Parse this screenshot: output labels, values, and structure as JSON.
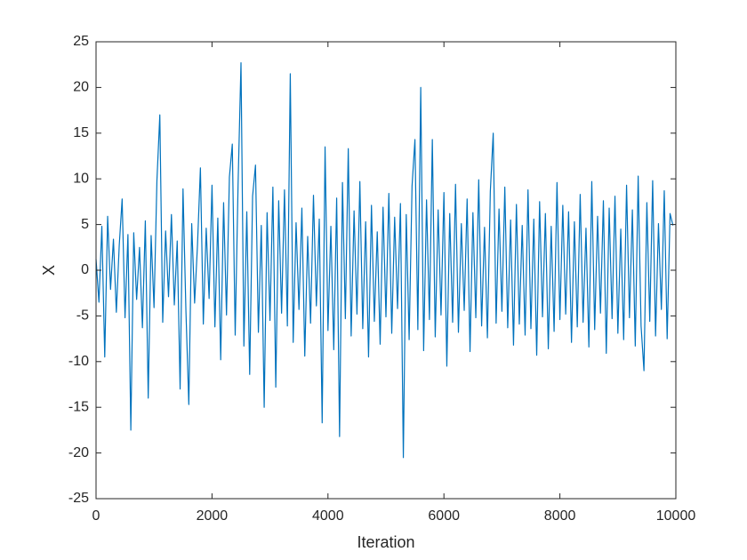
{
  "chart_data": {
    "type": "line",
    "xlabel": "Iteration",
    "ylabel": "X",
    "xlim": [
      0,
      10000
    ],
    "xticks": [
      0,
      2000,
      4000,
      6000,
      8000,
      10000
    ],
    "ylim": [
      -25,
      25
    ],
    "yticks": [
      -25,
      -20,
      -15,
      -10,
      -5,
      0,
      5,
      10,
      15,
      20,
      25
    ],
    "x": [
      0,
      50,
      100,
      150,
      200,
      250,
      300,
      350,
      400,
      450,
      500,
      550,
      600,
      650,
      700,
      750,
      800,
      850,
      900,
      950,
      1000,
      1050,
      1100,
      1150,
      1200,
      1250,
      1300,
      1350,
      1400,
      1450,
      1500,
      1550,
      1600,
      1650,
      1700,
      1750,
      1800,
      1850,
      1900,
      1950,
      2000,
      2050,
      2100,
      2150,
      2200,
      2250,
      2300,
      2350,
      2400,
      2450,
      2500,
      2550,
      2600,
      2650,
      2700,
      2750,
      2800,
      2850,
      2900,
      2950,
      3000,
      3050,
      3100,
      3150,
      3200,
      3250,
      3300,
      3350,
      3400,
      3450,
      3500,
      3550,
      3600,
      3650,
      3700,
      3750,
      3800,
      3850,
      3900,
      3950,
      4000,
      4050,
      4100,
      4150,
      4200,
      4250,
      4300,
      4350,
      4400,
      4450,
      4500,
      4550,
      4600,
      4650,
      4700,
      4750,
      4800,
      4850,
      4900,
      4950,
      5000,
      5050,
      5100,
      5150,
      5200,
      5250,
      5300,
      5350,
      5400,
      5450,
      5500,
      5550,
      5600,
      5650,
      5700,
      5750,
      5800,
      5850,
      5900,
      5950,
      6000,
      6050,
      6100,
      6150,
      6200,
      6250,
      6300,
      6350,
      6400,
      6450,
      6500,
      6550,
      6600,
      6650,
      6700,
      6750,
      6800,
      6850,
      6900,
      6950,
      7000,
      7050,
      7100,
      7150,
      7200,
      7250,
      7300,
      7350,
      7400,
      7450,
      7500,
      7550,
      7600,
      7650,
      7700,
      7750,
      7800,
      7850,
      7900,
      7950,
      8000,
      8050,
      8100,
      8150,
      8200,
      8250,
      8300,
      8350,
      8400,
      8450,
      8500,
      8550,
      8600,
      8650,
      8700,
      8750,
      8800,
      8850,
      8900,
      8950,
      9000,
      9050,
      9100,
      9150,
      9200,
      9250,
      9300,
      9350,
      9400,
      9450,
      9500,
      9550,
      9600,
      9650,
      9700,
      9750,
      9800,
      9850,
      9900,
      9950
    ],
    "series": [
      {
        "name": "X",
        "color": "#0072bd",
        "values": [
          1.2,
          -3.5,
          4.8,
          -9.5,
          5.9,
          -2.1,
          3.4,
          -4.6,
          2.7,
          7.8,
          -5.2,
          3.9,
          -17.5,
          4.1,
          -3.2,
          2.5,
          -6.3,
          5.4,
          -14,
          3.8,
          -4.1,
          9.8,
          17,
          -5.7,
          4.3,
          -2.9,
          6.1,
          -3.8,
          3.2,
          -13,
          8.9,
          -4.4,
          -14.7,
          5.1,
          -3.6,
          2.8,
          11.2,
          -5.9,
          4.6,
          -3.1,
          9.3,
          -6.2,
          5.7,
          -9.8,
          7.4,
          -4.9,
          10.2,
          13.8,
          -7.1,
          9.5,
          22.7,
          -8.3,
          6.4,
          -11.4,
          8.1,
          11.5,
          -6.8,
          4.9,
          -15,
          6.3,
          -5.5,
          9.1,
          -12.8,
          7.6,
          -4.7,
          8.8,
          -6.1,
          21.5,
          -7.9,
          5.2,
          -4.3,
          6.8,
          -9.4,
          3.7,
          -5.8,
          8.2,
          -3.9,
          5.6,
          -16.7,
          13.5,
          -6.6,
          4.8,
          -8.7,
          7.9,
          -18.2,
          9.6,
          -5.3,
          13.3,
          -7.2,
          6.5,
          -4.8,
          9.7,
          -6.4,
          5.3,
          -9.5,
          7.1,
          -5.6,
          4.2,
          -8.1,
          6.9,
          -5.1,
          8.4,
          -6.9,
          5.8,
          -4.2,
          7.3,
          -20.5,
          6.1,
          -7.6,
          9.2,
          14.3,
          -6.5,
          20,
          -8.8,
          7.7,
          -5.4,
          14.3,
          -7.3,
          6.6,
          -4.9,
          8.5,
          -10.5,
          6.2,
          -5.7,
          9.4,
          -6.8,
          5.1,
          -4.4,
          7.8,
          -8.9,
          6.3,
          -5.2,
          9.9,
          -6.1,
          4.7,
          -7.4,
          8.6,
          15,
          -5.8,
          6.7,
          -4.5,
          9.1,
          -6.3,
          5.5,
          -8.2,
          7.2,
          -5.9,
          4.9,
          -7.1,
          8.8,
          -6.4,
          5.6,
          -9.3,
          7.5,
          -5.1,
          6.2,
          -8.6,
          4.8,
          -6.7,
          9.6,
          -5.4,
          7.1,
          -4.8,
          6.4,
          -7.9,
          5.3,
          -6.2,
          8.3,
          -5.7,
          4.6,
          -8.4,
          9.7,
          -6.5,
          5.9,
          -4.7,
          7.6,
          -9.1,
          6.8,
          -5.3,
          8.1,
          -6.9,
          4.5,
          -7.6,
          9.3,
          -5.2,
          6.6,
          -8.3,
          10.3,
          -6.1,
          -11,
          7.4,
          -5.6,
          9.8,
          -7.2,
          5.1,
          -4.3,
          8.7,
          -7.5,
          6.2,
          4.9
        ]
      }
    ]
  }
}
